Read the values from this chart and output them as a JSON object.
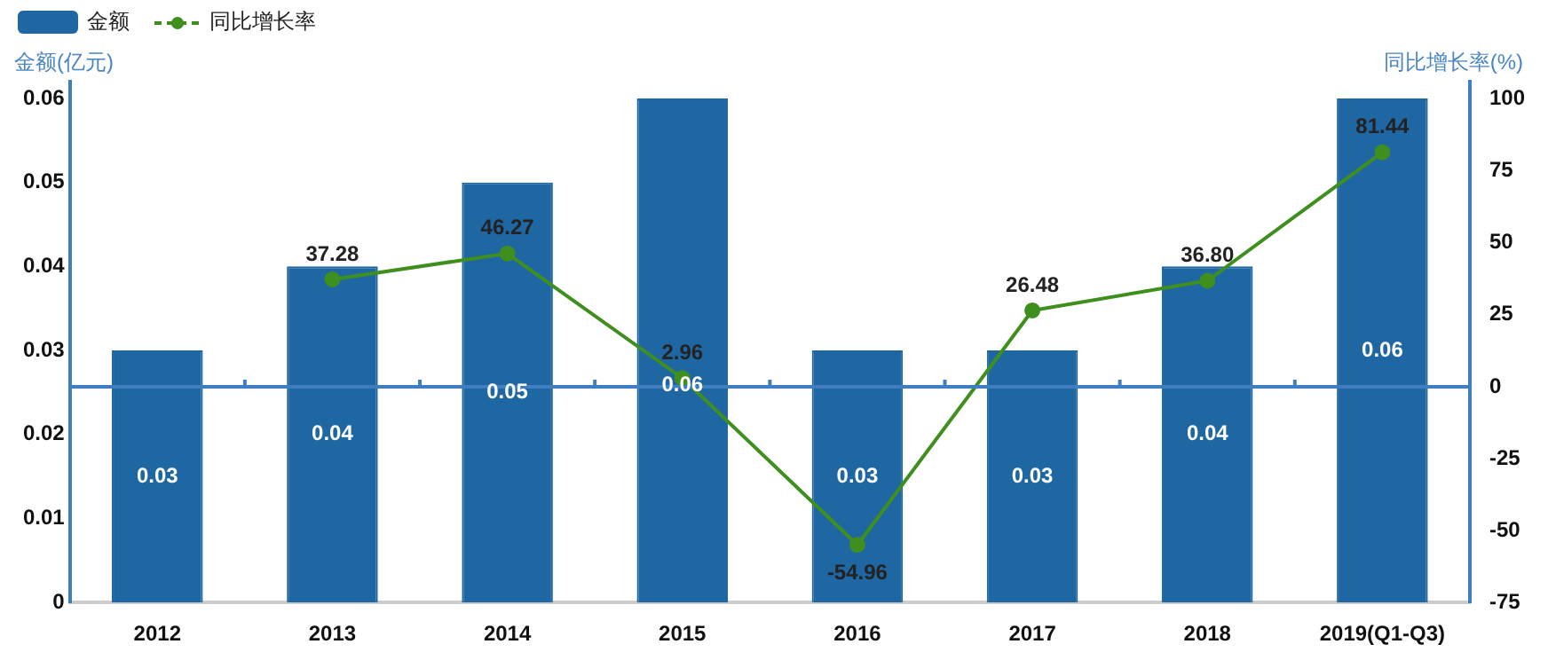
{
  "chart_data": {
    "type": "bar",
    "ylabel": "金额(亿元)",
    "y2label": "同比增长率(%)",
    "categories": [
      "2012",
      "2013",
      "2014",
      "2015",
      "2016",
      "2017",
      "2018",
      "2019(Q1-Q3)"
    ],
    "series": [
      {
        "name": "金额",
        "color": "#1f67a3",
        "values": [
          0.03,
          0.04,
          0.05,
          0.06,
          0.03,
          0.03,
          0.04,
          0.06
        ],
        "value_labels": [
          "0.03",
          "0.04",
          "0.05",
          "0.06",
          "0.03",
          "0.03",
          "0.04",
          "0.06"
        ]
      },
      {
        "name": "同比增长率",
        "type": "line",
        "axis": "y2",
        "color": "#3f8f1f",
        "marker": "circle",
        "values": [
          null,
          37.28,
          46.27,
          2.96,
          -54.96,
          26.48,
          36.8,
          81.44
        ],
        "value_labels": [
          null,
          "37.28",
          "46.27",
          "2.96",
          "-54.96",
          "26.48",
          "36.80",
          "81.44"
        ]
      }
    ],
    "ylim": [
      0,
      0.062
    ],
    "yticks": [
      0,
      0.01,
      0.02,
      0.03,
      0.04,
      0.05,
      0.06
    ],
    "y2lim": [
      -75,
      106
    ],
    "y2ticks": [
      -75,
      -50,
      -25,
      0,
      25,
      50,
      75,
      100
    ],
    "ref_lines": [
      {
        "axis": "y2",
        "value": 0,
        "color": "#3f7fbf"
      }
    ],
    "grid": false,
    "legend": "top left"
  }
}
